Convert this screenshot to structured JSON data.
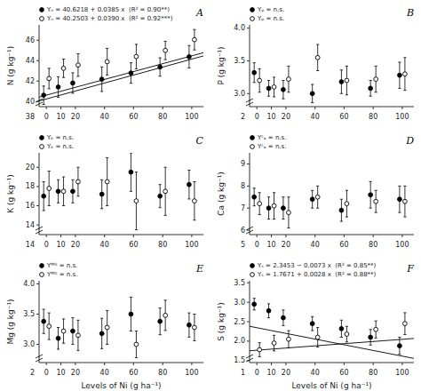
{
  "chart_data": [
    {
      "type": "scatter",
      "title": "A",
      "y_label": "N (g kg⁻¹)",
      "x": [
        0,
        10,
        20,
        40,
        60,
        80,
        100
      ],
      "xlim": [
        -5,
        108
      ],
      "xticks": [
        0,
        10,
        20,
        40,
        60,
        80,
        100
      ],
      "ylim": [
        39.5,
        47.5
      ],
      "yticks": [
        40,
        42,
        44,
        46
      ],
      "ybreak": 38,
      "legend": "upper left",
      "grid": false,
      "series": [
        {
          "name": "Yₙ = 40.6218 + 0.0385 x  (R² = 0.90**)",
          "color": "#000000",
          "marker": "circle",
          "values": [
            40.62,
            41.42,
            41.81,
            42.18,
            42.79,
            43.38,
            44.38
          ],
          "errors": [
            0.9,
            1.0,
            1.0,
            1.2,
            1.0,
            0.9,
            1.1
          ],
          "trend": {
            "intercept": 40.6218,
            "slope": 0.0385
          }
        },
        {
          "name": "Yₙ = 40.2503 + 0.0390 x  (R² = 0.92***)",
          "color": "#ffffff",
          "marker": "circle",
          "values": [
            42.25,
            43.25,
            43.57,
            43.9,
            44.4,
            45.0,
            46.05
          ],
          "errors": [
            1.0,
            0.9,
            1.1,
            1.3,
            1.2,
            0.9,
            1.0
          ],
          "trend": {
            "intercept": 40.2503,
            "slope": 0.039
          }
        }
      ]
    },
    {
      "type": "scatter",
      "title": "B",
      "y_label": "P (g kg⁻¹)",
      "x": [
        0,
        10,
        20,
        40,
        60,
        80,
        100
      ],
      "xlim": [
        -5,
        108
      ],
      "xticks": [
        0,
        10,
        20,
        40,
        60,
        80,
        100
      ],
      "ylim": [
        2.8,
        4.05
      ],
      "yticks": [
        {
          "value": 3.0,
          "label": "3.0"
        },
        3.5,
        {
          "value": 4.0,
          "label": "4.0"
        }
      ],
      "ybreak": 2,
      "legend": "upper left",
      "grid": false,
      "series": [
        {
          "name": "Yₚ = n.s.",
          "color": "#000000",
          "marker": "circle",
          "values": [
            3.32,
            3.08,
            3.06,
            3.0,
            3.18,
            3.08,
            3.28
          ],
          "errors": [
            0.15,
            0.12,
            0.14,
            0.14,
            0.18,
            0.12,
            0.2
          ]
        },
        {
          "name": "Yₚ = n.s.",
          "color": "#ffffff",
          "marker": "circle",
          "values": [
            3.2,
            3.1,
            3.22,
            3.55,
            3.2,
            3.22,
            3.3
          ],
          "errors": [
            0.18,
            0.15,
            0.2,
            0.2,
            0.22,
            0.2,
            0.25
          ]
        }
      ]
    },
    {
      "type": "scatter",
      "title": "C",
      "y_label": "K (g kg⁻¹)",
      "x": [
        0,
        10,
        20,
        40,
        60,
        80,
        100
      ],
      "xlim": [
        -5,
        108
      ],
      "xticks": [
        0,
        10,
        20,
        40,
        60,
        80,
        100
      ],
      "ylim": [
        13,
        21.5
      ],
      "yticks": [
        14,
        16,
        18,
        20
      ],
      "ybreak": 14,
      "legend": "upper left",
      "grid": false,
      "series": [
        {
          "name": "Yₖ = n.s.",
          "color": "#000000",
          "marker": "circle",
          "values": [
            17.0,
            17.5,
            17.5,
            17.2,
            19.5,
            17.0,
            18.2
          ],
          "errors": [
            1.5,
            1.2,
            1.2,
            1.5,
            2.0,
            1.2,
            1.5
          ]
        },
        {
          "name": "Yₖ = n.s.",
          "color": "#ffffff",
          "marker": "circle",
          "values": [
            17.8,
            17.5,
            18.5,
            18.5,
            16.5,
            17.5,
            16.5
          ],
          "errors": [
            1.8,
            1.5,
            1.5,
            2.5,
            3.0,
            2.5,
            2.0
          ]
        }
      ]
    },
    {
      "type": "scatter",
      "title": "D",
      "y_label": "Ca (g kg⁻¹)",
      "x": [
        0,
        10,
        20,
        40,
        60,
        80,
        100
      ],
      "xlim": [
        -5,
        108
      ],
      "xticks": [
        0,
        10,
        20,
        40,
        60,
        80,
        100
      ],
      "ylim": [
        5.8,
        9.5
      ],
      "yticks": [
        6,
        7,
        8,
        9
      ],
      "ybreak": 5,
      "legend": "upper left",
      "grid": false,
      "series": [
        {
          "name": "Yᶜₐ = n.s.",
          "color": "#000000",
          "marker": "circle",
          "values": [
            7.5,
            7.0,
            7.0,
            7.4,
            6.9,
            7.6,
            7.4
          ],
          "errors": [
            0.4,
            0.5,
            0.5,
            0.4,
            0.5,
            0.6,
            0.6
          ]
        },
        {
          "name": "Yᶜₐ = n.s.",
          "color": "#ffffff",
          "marker": "circle",
          "values": [
            7.2,
            7.1,
            6.8,
            7.5,
            7.2,
            7.3,
            7.3
          ],
          "errors": [
            0.5,
            0.6,
            0.7,
            0.5,
            0.6,
            0.5,
            0.7
          ]
        }
      ]
    },
    {
      "type": "scatter",
      "title": "E",
      "y_label": "Mg (g kg⁻¹)",
      "x_label": "Levels of Ni (g ha⁻¹)",
      "x": [
        0,
        10,
        20,
        40,
        60,
        80,
        100
      ],
      "xlim": [
        -5,
        108
      ],
      "xticks": [
        0,
        10,
        20,
        40,
        60,
        80,
        100
      ],
      "ylim": [
        2.7,
        4.05
      ],
      "yticks": [
        {
          "value": 3.0,
          "label": "3.0"
        },
        3.5,
        {
          "value": 4.0,
          "label": "4.0"
        }
      ],
      "ybreak": 2,
      "legend": "upper left",
      "grid": false,
      "series": [
        {
          "name": "Yᴹᴳ = n.s.",
          "color": "#000000",
          "marker": "circle",
          "values": [
            3.38,
            3.1,
            3.22,
            3.18,
            3.5,
            3.38,
            3.32
          ],
          "errors": [
            0.2,
            0.18,
            0.22,
            0.25,
            0.28,
            0.22,
            0.2
          ]
        },
        {
          "name": "Yᴹᴳ = n.s.",
          "color": "#ffffff",
          "marker": "circle",
          "values": [
            3.3,
            3.22,
            3.15,
            3.28,
            3.0,
            3.48,
            3.28
          ],
          "errors": [
            0.22,
            0.2,
            0.25,
            0.28,
            0.22,
            0.25,
            0.22
          ]
        }
      ]
    },
    {
      "type": "scatter",
      "title": "F",
      "y_label": "S (g kg⁻¹)",
      "x_label": "Levels of Ni (g ha⁻¹)",
      "x": [
        0,
        10,
        20,
        40,
        60,
        80,
        100
      ],
      "xlim": [
        -5,
        108
      ],
      "xticks": [
        0,
        10,
        20,
        40,
        60,
        80,
        100
      ],
      "ylim": [
        1.45,
        3.55
      ],
      "yticks": [
        1.5,
        {
          "value": 2.0,
          "label": "2.0"
        },
        2.5,
        {
          "value": 3.0,
          "label": "3.0"
        },
        3.5
      ],
      "ybreak": 1,
      "legend": "upper left",
      "grid": false,
      "series": [
        {
          "name": "Yₛ = 2.3453 − 0.0073 x  (R² = 0.85**)",
          "color": "#000000",
          "marker": "circle",
          "values": [
            2.95,
            2.78,
            2.6,
            2.45,
            2.32,
            2.1,
            1.88
          ],
          "errors": [
            0.15,
            0.18,
            0.2,
            0.18,
            0.22,
            0.2,
            0.22
          ],
          "trend": {
            "intercept": 2.3453,
            "slope": -0.0073
          }
        },
        {
          "name": "Yₛ = 1.7671 + 0.0028 x  (R² = 0.88**)",
          "color": "#ffffff",
          "marker": "circle",
          "values": [
            1.78,
            1.95,
            2.05,
            2.1,
            2.18,
            2.3,
            2.45
          ],
          "errors": [
            0.18,
            0.2,
            0.22,
            0.25,
            0.2,
            0.22,
            0.28
          ],
          "trend": {
            "intercept": 1.7671,
            "slope": 0.0028
          }
        }
      ]
    }
  ]
}
